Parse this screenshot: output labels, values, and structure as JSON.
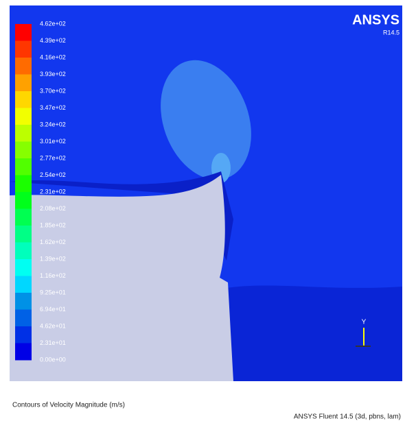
{
  "legend": {
    "labels": [
      "4.62e+02",
      "4.39e+02",
      "4.16e+02",
      "3.93e+02",
      "3.70e+02",
      "3.47e+02",
      "3.24e+02",
      "3.01e+02",
      "2.77e+02",
      "2.54e+02",
      "2.31e+02",
      "2.08e+02",
      "1.85e+02",
      "1.62e+02",
      "1.39e+02",
      "1.16e+02",
      "9.25e+01",
      "6.94e+01",
      "4.62e+01",
      "2.31e+01",
      "0.00e+00"
    ]
  },
  "branding": {
    "name": "ANSYS",
    "version": "R14.5"
  },
  "axis_triad": {
    "label": "Y"
  },
  "footer": {
    "caption": "Contours of Velocity Magnitude (m/s)",
    "solver": "ANSYS Fluent 14.5 (3d, pbns, lam)"
  }
}
